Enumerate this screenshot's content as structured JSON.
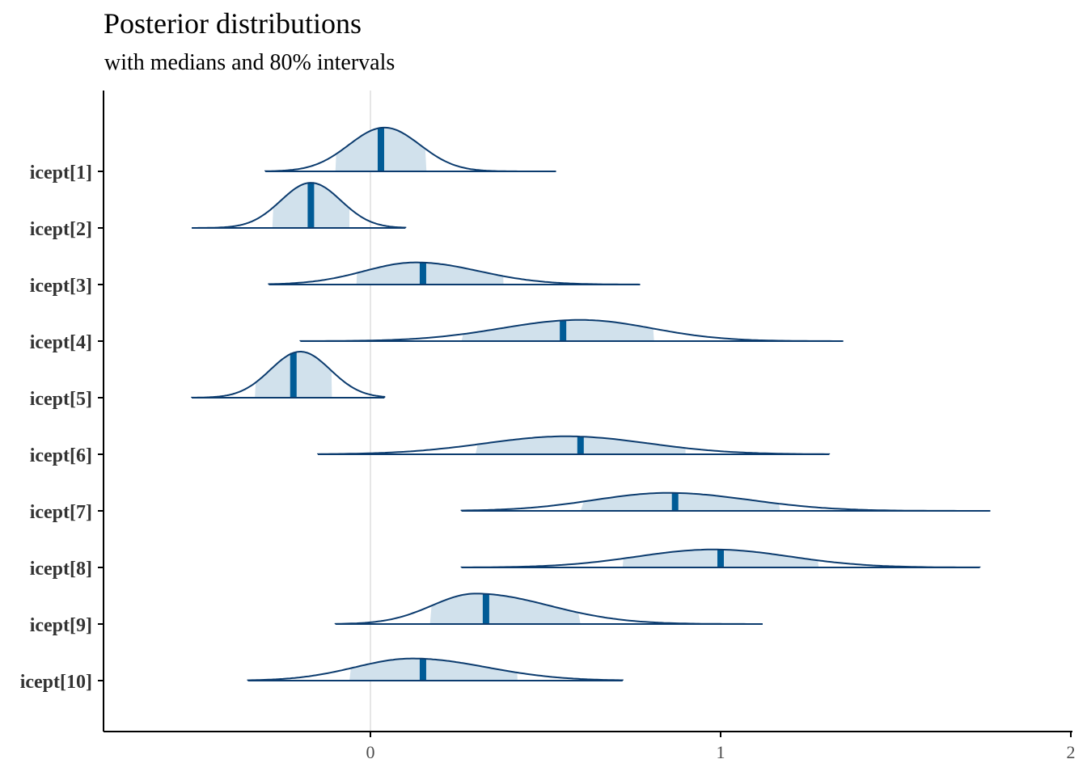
{
  "chart_data": {
    "type": "ridgeline",
    "title": "Posterior distributions",
    "subtitle": "with medians and 80% intervals",
    "xlim": [
      -0.76,
      2.0
    ],
    "xticks": [
      0,
      1,
      2
    ],
    "xtick_labels": [
      "0",
      "1",
      "2"
    ],
    "vline_at": 0,
    "colors": {
      "outline": "#0b3b6e",
      "interval_fill": "#d1e1ec",
      "median": "#005b96",
      "vline": "#dddddd",
      "axis": "#000000"
    },
    "parameters": [
      {
        "name": "icept[1]",
        "median": 0.03,
        "q10": -0.1,
        "q90": 0.16,
        "min": -0.3,
        "max": 0.53,
        "peak_height": 0.95,
        "mode": 0.04
      },
      {
        "name": "icept[2]",
        "median": -0.17,
        "q10": -0.28,
        "q90": -0.06,
        "min": -0.51,
        "max": 0.1,
        "peak_height": 0.98,
        "mode": -0.17
      },
      {
        "name": "icept[3]",
        "median": 0.15,
        "q10": -0.04,
        "q90": 0.38,
        "min": -0.29,
        "max": 0.77,
        "peak_height": 0.48,
        "mode": 0.13
      },
      {
        "name": "icept[4]",
        "median": 0.55,
        "q10": 0.26,
        "q90": 0.81,
        "min": -0.2,
        "max": 1.35,
        "peak_height": 0.46,
        "mode": 0.6
      },
      {
        "name": "icept[5]",
        "median": -0.22,
        "q10": -0.33,
        "q90": -0.11,
        "min": -0.51,
        "max": 0.04,
        "peak_height": 1.0,
        "mode": -0.2
      },
      {
        "name": "icept[6]",
        "median": 0.6,
        "q10": 0.3,
        "q90": 0.9,
        "min": -0.15,
        "max": 1.31,
        "peak_height": 0.39,
        "mode": 0.56
      },
      {
        "name": "icept[7]",
        "median": 0.87,
        "q10": 0.6,
        "q90": 1.17,
        "min": 0.26,
        "max": 1.77,
        "peak_height": 0.39,
        "mode": 0.85
      },
      {
        "name": "icept[8]",
        "median": 1.0,
        "q10": 0.72,
        "q90": 1.28,
        "min": 0.26,
        "max": 1.74,
        "peak_height": 0.39,
        "mode": 0.98
      },
      {
        "name": "icept[9]",
        "median": 0.33,
        "q10": 0.17,
        "q90": 0.6,
        "min": -0.1,
        "max": 1.12,
        "peak_height": 0.66,
        "mode": 0.3
      },
      {
        "name": "icept[10]",
        "median": 0.15,
        "q10": -0.06,
        "q90": 0.42,
        "min": -0.35,
        "max": 0.72,
        "peak_height": 0.48,
        "mode": 0.12
      }
    ]
  }
}
